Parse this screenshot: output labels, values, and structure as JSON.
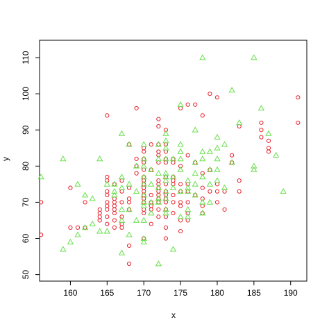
{
  "chart_data": {
    "type": "scatter",
    "xlabel": "x",
    "ylabel": "y",
    "xlim": [
      155.8,
      192.2
    ],
    "ylim": [
      48.2,
      114.8
    ],
    "xticks": [
      160,
      165,
      170,
      175,
      180,
      185,
      190
    ],
    "yticks": [
      50,
      60,
      70,
      80,
      90,
      100,
      110
    ],
    "grid": false,
    "legend": "none",
    "series": [
      {
        "marker": "circle",
        "color": "#e8202a",
        "points": [
          [
            156,
            70
          ],
          [
            156,
            61
          ],
          [
            160,
            74
          ],
          [
            160,
            63
          ],
          [
            161,
            63
          ],
          [
            162,
            70
          ],
          [
            162,
            63
          ],
          [
            164,
            68
          ],
          [
            164,
            67
          ],
          [
            164,
            66
          ],
          [
            164,
            65
          ],
          [
            165,
            77
          ],
          [
            165,
            76
          ],
          [
            165,
            73
          ],
          [
            165,
            94
          ],
          [
            165,
            72
          ],
          [
            165,
            70
          ],
          [
            165,
            69
          ],
          [
            165,
            68
          ],
          [
            165,
            66
          ],
          [
            165,
            64
          ],
          [
            166,
            75
          ],
          [
            166,
            71
          ],
          [
            166,
            70
          ],
          [
            166,
            69
          ],
          [
            166,
            68
          ],
          [
            166,
            67
          ],
          [
            166,
            65
          ],
          [
            166,
            63
          ],
          [
            167,
            76
          ],
          [
            167,
            73
          ],
          [
            167,
            70
          ],
          [
            167,
            66
          ],
          [
            167,
            64
          ],
          [
            167,
            63
          ],
          [
            168,
            86
          ],
          [
            168,
            74
          ],
          [
            168,
            71
          ],
          [
            168,
            70
          ],
          [
            168,
            68
          ],
          [
            168,
            58
          ],
          [
            168,
            53
          ],
          [
            169,
            96
          ],
          [
            169,
            82
          ],
          [
            169,
            80
          ],
          [
            169,
            78
          ],
          [
            170,
            85
          ],
          [
            170,
            84
          ],
          [
            170,
            82
          ],
          [
            170,
            81
          ],
          [
            170,
            79
          ],
          [
            170,
            77
          ],
          [
            170,
            76
          ],
          [
            170,
            75
          ],
          [
            170,
            74
          ],
          [
            170,
            73
          ],
          [
            170,
            72
          ],
          [
            170,
            71
          ],
          [
            170,
            70
          ],
          [
            170,
            68
          ],
          [
            170,
            67
          ],
          [
            170,
            60
          ],
          [
            171,
            86
          ],
          [
            171,
            79
          ],
          [
            171,
            72
          ],
          [
            171,
            70
          ],
          [
            171,
            69
          ],
          [
            171,
            68
          ],
          [
            171,
            64
          ],
          [
            172,
            93
          ],
          [
            172,
            91
          ],
          [
            172,
            86
          ],
          [
            172,
            84
          ],
          [
            172,
            83
          ],
          [
            172,
            81
          ],
          [
            172,
            76
          ],
          [
            172,
            75
          ],
          [
            172,
            74
          ],
          [
            172,
            73
          ],
          [
            172,
            72
          ],
          [
            172,
            71
          ],
          [
            172,
            70
          ],
          [
            172,
            68
          ],
          [
            172,
            66
          ],
          [
            173,
            90
          ],
          [
            173,
            86
          ],
          [
            173,
            84
          ],
          [
            173,
            82
          ],
          [
            173,
            81
          ],
          [
            173,
            77
          ],
          [
            173,
            75
          ],
          [
            173,
            73
          ],
          [
            173,
            72
          ],
          [
            173,
            71
          ],
          [
            173,
            70
          ],
          [
            173,
            68
          ],
          [
            173,
            66
          ],
          [
            173,
            63
          ],
          [
            173,
            60
          ],
          [
            174,
            82
          ],
          [
            174,
            81
          ],
          [
            174,
            77
          ],
          [
            174,
            76
          ],
          [
            174,
            75
          ],
          [
            174,
            72
          ],
          [
            174,
            70
          ],
          [
            174,
            67
          ],
          [
            175,
            96
          ],
          [
            175,
            80
          ],
          [
            175,
            75
          ],
          [
            175,
            73
          ],
          [
            175,
            70
          ],
          [
            175,
            69
          ],
          [
            175,
            65
          ],
          [
            175,
            62
          ],
          [
            176,
            97
          ],
          [
            176,
            83
          ],
          [
            176,
            75
          ],
          [
            176,
            73
          ],
          [
            176,
            70
          ],
          [
            176,
            67
          ],
          [
            176,
            65
          ],
          [
            177,
            97
          ],
          [
            177,
            81
          ],
          [
            177,
            72
          ],
          [
            178,
            94
          ],
          [
            178,
            78
          ],
          [
            178,
            74
          ],
          [
            178,
            71
          ],
          [
            178,
            69
          ],
          [
            178,
            67
          ],
          [
            179,
            100
          ],
          [
            179,
            79
          ],
          [
            179,
            73
          ],
          [
            180,
            99
          ],
          [
            180,
            75
          ],
          [
            180,
            73
          ],
          [
            180,
            70
          ],
          [
            181,
            73
          ],
          [
            181,
            68
          ],
          [
            182,
            83
          ],
          [
            182,
            81
          ],
          [
            183,
            91
          ],
          [
            183,
            76
          ],
          [
            183,
            73
          ],
          [
            186,
            92
          ],
          [
            186,
            90
          ],
          [
            186,
            88
          ],
          [
            187,
            87
          ],
          [
            187,
            85
          ],
          [
            187,
            84
          ],
          [
            191,
            99
          ],
          [
            191,
            92
          ]
        ]
      },
      {
        "marker": "triangle",
        "color": "#66e04a",
        "points": [
          [
            156,
            77
          ],
          [
            159,
            82
          ],
          [
            159,
            57
          ],
          [
            160,
            59
          ],
          [
            161,
            75
          ],
          [
            161,
            61
          ],
          [
            162,
            72
          ],
          [
            162,
            63
          ],
          [
            163,
            71
          ],
          [
            163,
            64
          ],
          [
            164,
            82
          ],
          [
            164,
            62
          ],
          [
            165,
            62
          ],
          [
            165,
            75
          ],
          [
            166,
            73
          ],
          [
            166,
            72
          ],
          [
            166,
            75
          ],
          [
            167,
            89
          ],
          [
            167,
            77
          ],
          [
            167,
            74
          ],
          [
            167,
            68
          ],
          [
            167,
            65
          ],
          [
            167,
            56
          ],
          [
            168,
            86
          ],
          [
            168,
            75
          ],
          [
            168,
            68
          ],
          [
            168,
            61
          ],
          [
            169,
            80
          ],
          [
            169,
            73
          ],
          [
            169,
            65
          ],
          [
            170,
            86
          ],
          [
            170,
            82
          ],
          [
            170,
            80
          ],
          [
            170,
            77
          ],
          [
            170,
            75
          ],
          [
            170,
            72
          ],
          [
            170,
            70
          ],
          [
            170,
            69
          ],
          [
            170,
            65
          ],
          [
            170,
            60
          ],
          [
            170,
            59
          ],
          [
            171,
            79
          ],
          [
            171,
            75
          ],
          [
            171,
            70
          ],
          [
            171,
            67
          ],
          [
            172,
            86
          ],
          [
            172,
            82
          ],
          [
            172,
            78
          ],
          [
            172,
            74
          ],
          [
            172,
            71
          ],
          [
            172,
            70
          ],
          [
            172,
            53
          ],
          [
            173,
            89
          ],
          [
            173,
            87
          ],
          [
            173,
            85
          ],
          [
            173,
            82
          ],
          [
            173,
            78
          ],
          [
            173,
            77
          ],
          [
            173,
            76
          ],
          [
            173,
            73
          ],
          [
            173,
            71
          ],
          [
            173,
            68
          ],
          [
            173,
            67
          ],
          [
            174,
            82
          ],
          [
            174,
            77
          ],
          [
            174,
            74
          ],
          [
            174,
            57
          ],
          [
            175,
            97
          ],
          [
            175,
            86
          ],
          [
            175,
            84
          ],
          [
            175,
            82
          ],
          [
            175,
            79
          ],
          [
            175,
            73
          ],
          [
            175,
            66
          ],
          [
            176,
            76
          ],
          [
            176,
            74
          ],
          [
            176,
            73
          ],
          [
            176,
            68
          ],
          [
            176,
            66
          ],
          [
            177,
            90
          ],
          [
            177,
            81
          ],
          [
            177,
            78
          ],
          [
            177,
            75
          ],
          [
            177,
            72
          ],
          [
            178,
            110
          ],
          [
            178,
            84
          ],
          [
            178,
            82
          ],
          [
            178,
            77
          ],
          [
            178,
            70
          ],
          [
            178,
            67
          ],
          [
            179,
            84
          ],
          [
            179,
            79
          ],
          [
            179,
            75
          ],
          [
            179,
            70
          ],
          [
            180,
            88
          ],
          [
            180,
            85
          ],
          [
            180,
            82
          ],
          [
            180,
            79
          ],
          [
            180,
            76
          ],
          [
            181,
            86
          ],
          [
            181,
            74
          ],
          [
            182,
            101
          ],
          [
            182,
            81
          ],
          [
            183,
            92
          ],
          [
            185,
            110
          ],
          [
            185,
            80
          ],
          [
            185,
            79
          ],
          [
            186,
            96
          ],
          [
            187,
            89
          ],
          [
            188,
            83
          ],
          [
            189,
            73
          ]
        ]
      }
    ]
  }
}
